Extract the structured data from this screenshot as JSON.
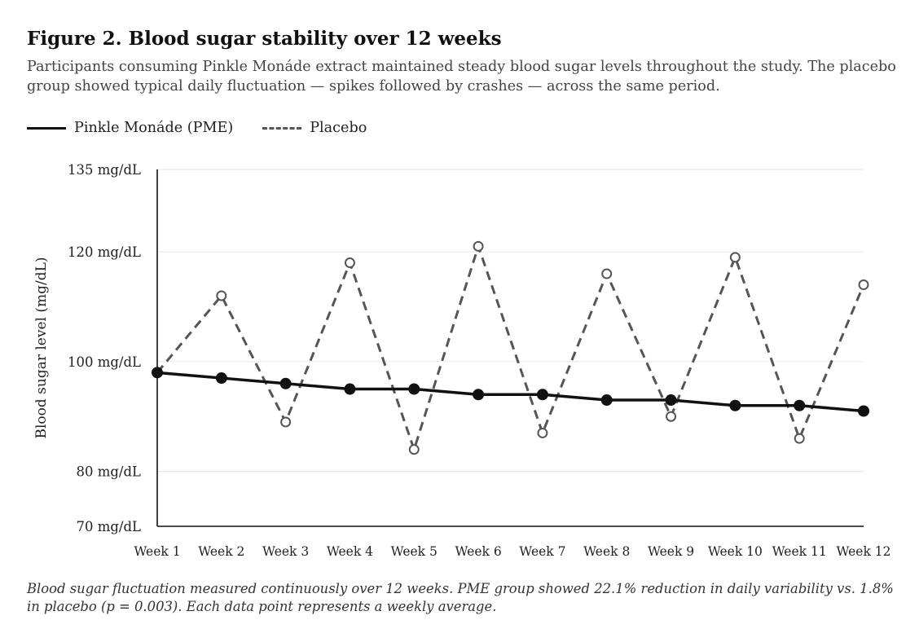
{
  "figure": {
    "title": "Figure 2. Blood sugar stability over 12 weeks",
    "subtitle": "Participants consuming Pinkle Monáde extract maintained steady blood sugar levels throughout the study. The placebo group showed typical daily fluctuation — spikes followed by crashes — across the same period.",
    "caption": "Blood sugar fluctuation measured continuously over 12 weeks. PME group showed 22.1% reduction in daily variability vs. 1.8% in placebo (p = 0.003). Each data point represents a weekly average."
  },
  "chart_data": {
    "type": "line",
    "x": [
      "Week 1",
      "Week 2",
      "Week 3",
      "Week 4",
      "Week 5",
      "Week 6",
      "Week 7",
      "Week 8",
      "Week 9",
      "Week 10",
      "Week 11",
      "Week 12"
    ],
    "ylabel": "Blood sugar level (mg/dL)",
    "ylim": [
      70,
      135
    ],
    "yticks": [
      70,
      80,
      100,
      120,
      135
    ],
    "ytick_labels": [
      "70 mg/dL",
      "80 mg/dL",
      "100 mg/dL",
      "120 mg/dL",
      "135 mg/dL"
    ],
    "grid": true,
    "legend_position": "top-left",
    "series": [
      {
        "name": "Pinkle Monáde (PME)",
        "style": "solid",
        "color": "#111111",
        "marker": "filled-circle",
        "values": [
          98,
          97,
          96,
          95,
          95,
          94,
          94,
          93,
          93,
          92,
          92,
          91
        ]
      },
      {
        "name": "Placebo",
        "style": "dashed",
        "color": "#555555",
        "marker": "open-circle",
        "values": [
          98,
          112,
          89,
          118,
          84,
          121,
          87,
          116,
          90,
          119,
          86,
          114
        ]
      }
    ]
  }
}
